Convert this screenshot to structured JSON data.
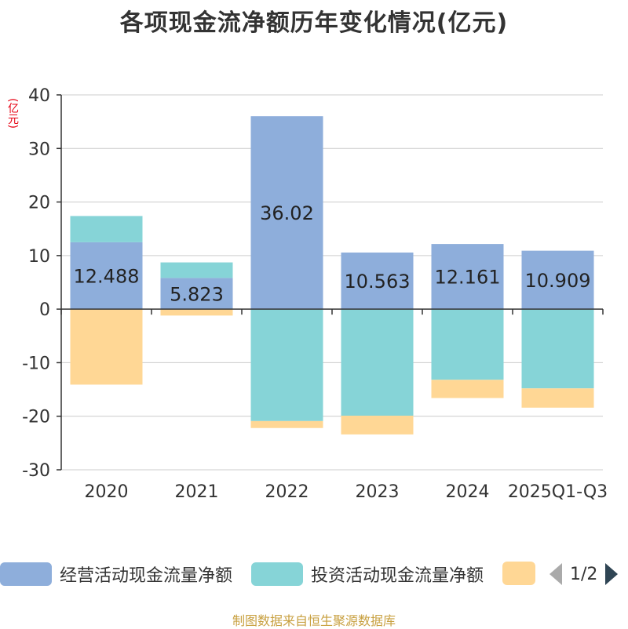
{
  "chart_data": {
    "type": "bar",
    "stacked": true,
    "title": "各项现金流净额历年变化情况(亿元)",
    "ylabel": "(亿元)",
    "categories": [
      "2020",
      "2021",
      "2022",
      "2023",
      "2024",
      "2025Q1-Q3"
    ],
    "ylim": [
      -30,
      40
    ],
    "yticks": [
      40,
      30,
      20,
      10,
      0,
      -10,
      -20,
      -30
    ],
    "grid": true,
    "series": [
      {
        "name": "经营活动现金流量净额",
        "color": "#8eaedb",
        "values": [
          12.488,
          5.823,
          36.02,
          10.563,
          12.161,
          10.909
        ],
        "labels": [
          "12.488",
          "5.823",
          "36.02",
          "10.563",
          "12.161",
          "10.909"
        ]
      },
      {
        "name": "投资活动现金流量净额",
        "color": "#86d4d7",
        "values": [
          4.9,
          2.9,
          -20.9,
          -19.9,
          -13.2,
          -14.8
        ]
      },
      {
        "name": "",
        "color": "#ffd795",
        "values": [
          -14.1,
          -1.2,
          -1.3,
          -3.5,
          -3.4,
          -3.6
        ]
      }
    ]
  },
  "legend": {
    "items": [
      {
        "label": "经营活动现金流量净额",
        "color": "#8eaedb"
      },
      {
        "label": "投资活动现金流量净额",
        "color": "#86d4d7"
      },
      {
        "label": "",
        "color": "#ffd795"
      }
    ],
    "page": "1/2"
  },
  "source": "制图数据来自恒生聚源数据库"
}
